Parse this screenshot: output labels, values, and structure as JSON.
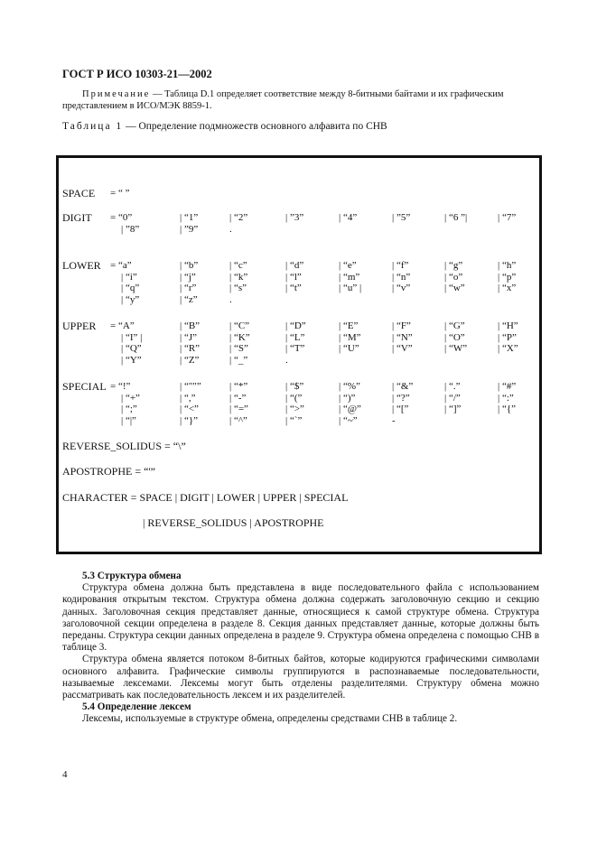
{
  "header": "ГОСТ Р ИСО 10303-21—2002",
  "note": {
    "label": "Примечание",
    "text": " — Таблица D.1 определяет соответствие между 8-битными байтами и их графическим представлением в ИСО/МЭК 8859-1."
  },
  "table_caption": {
    "label": "Таблица 1",
    "text": " — Определение подмножеств основного алфавита по СНВ"
  },
  "table": {
    "rows": [
      {
        "name": "SPACE",
        "lines": [
          [
            "= “ ”"
          ]
        ]
      },
      {
        "name": "DIGIT",
        "lines": [
          [
            "= “0”",
            "| “1”",
            "| “2”",
            "| ”3”",
            "| “4”",
            "| ”5”",
            "| “6 ”|",
            "| “7”"
          ],
          [
            "| ”8”",
            "| ”9”",
            "."
          ]
        ]
      },
      {
        "name": "LOWER",
        "lines": [
          [
            "= “a”",
            "| “b”",
            "| “c”",
            "| “d”",
            "| “e”",
            "| “f”",
            "| “g”",
            "| “h”"
          ],
          [
            "| “i”",
            "| “j”",
            "| “k”",
            "| “l”",
            "| “m”",
            "| “n”",
            "| “o”",
            "| “p”"
          ],
          [
            "| “q”",
            "| “r”",
            "| “s”",
            "| “t”",
            "| “u” |",
            "| “v”",
            "| “w”",
            "| “x”"
          ],
          [
            "| “y”",
            "| “z”",
            "."
          ]
        ]
      },
      {
        "name": "UPPER",
        "lines": [
          [
            "= “A”",
            "| “B”",
            "| “C”",
            "| “D”",
            "| “E”",
            "| “F”",
            "| “G”",
            "| “H”"
          ],
          [
            "| “I” |",
            "| “J”",
            "| “K”",
            "| “L”",
            "| “M”",
            "| “N”",
            "| “O”",
            "| “P”"
          ],
          [
            "| “Q”",
            "| “R”",
            "| “S”",
            "| “T”",
            "| “U”",
            "| “V”",
            "| “W”",
            "| “X”"
          ],
          [
            "| “Y”",
            "| “Z”",
            "| “_”",
            "."
          ]
        ]
      },
      {
        "name": "SPECIAL",
        "lines": [
          [
            "= “!”",
            "| “\"\"”",
            "| “*”",
            "| “$”",
            "| “%”",
            "| “&”",
            "| “.”",
            "| “#”"
          ],
          [
            "| “+”",
            "| “,”",
            "| “-”",
            "| “(”",
            "| “)”",
            "| “?”",
            "| “/”",
            "| “:”"
          ],
          [
            "| “;”",
            "| “<”",
            "| “=”",
            "| “>”",
            "| “@”",
            "| “[”",
            "| “]”",
            "| “{”"
          ],
          [
            "| “|”",
            "| “}”",
            "| “^”",
            "| “`”",
            "| “~”",
            "-"
          ]
        ]
      }
    ],
    "reverse_solidus": "REVERSE_SOLIDUS = “\\”",
    "apostrophe": "APOSTROPHE = “'”",
    "character": "CHARACTER = SPACE | DIGIT | LOWER | UPPER | SPECIAL",
    "character_cont": "| REVERSE_SOLIDUS | APOSTROPHE"
  },
  "section_5_3": {
    "title": "5.3 Структура обмена",
    "p1": "Структура обмена должна быть представлена в виде последовательного файла с использованием кодирования открытым текстом. Структура обмена должна содержать заголовочную секцию и секцию данных. Заголовочная секция представляет данные, относящиеся к самой структуре обмена. Структура заголовочной секции определена в разделе 8. Секция данных представляет данные, которые должны быть переданы. Структура секции данных определена в разделе 9. Структура обмена определена с помощью СНВ в таблице 3.",
    "p2": "Структура обмена является потоком 8-битных байтов, которые кодируются графическими символами основного алфавита. Графические символы группируются в распознаваемые последовательности, называемые лексемами. Лексемы могут быть отделены разделителями. Структуру обмена можно рассматривать как последовательность лексем и их разделителей."
  },
  "section_5_4": {
    "title": "5.4 Определение лексем",
    "p1": "Лексемы, используемые в структуре обмена, определены средствами СНВ в таблице 2."
  },
  "page_number": "4"
}
